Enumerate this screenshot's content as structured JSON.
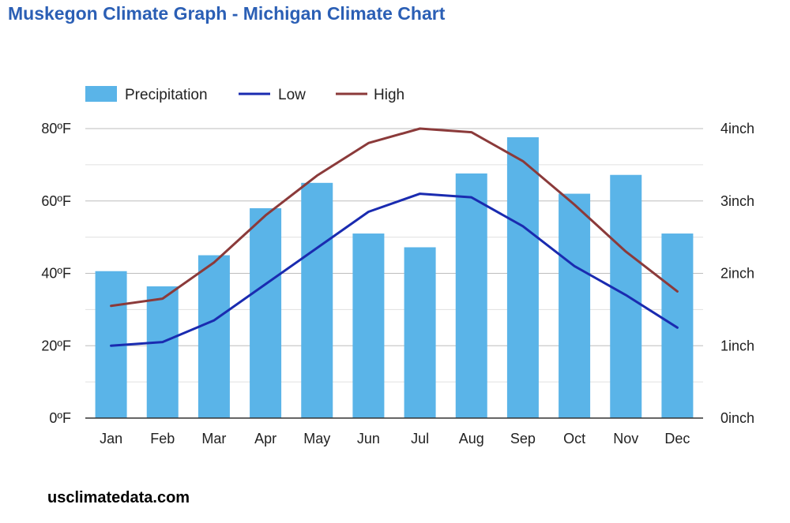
{
  "page": {
    "title": "Muskegon Climate Graph - Michigan Climate Chart",
    "source": "usclimatedata.com"
  },
  "chart_data": {
    "type": "bar",
    "title": "Muskegon Climate Graph - Michigan Climate Chart",
    "categories": [
      "Jan",
      "Feb",
      "Mar",
      "Apr",
      "May",
      "Jun",
      "Jul",
      "Aug",
      "Sep",
      "Oct",
      "Nov",
      "Dec"
    ],
    "series": [
      {
        "name": "Precipitation",
        "type": "bar",
        "axis": "right",
        "color": "#5ab4e8",
        "values": [
          2.03,
          1.82,
          2.25,
          2.9,
          3.25,
          2.55,
          2.36,
          3.38,
          3.88,
          3.1,
          3.36,
          2.55
        ]
      },
      {
        "name": "Low",
        "type": "line",
        "axis": "left",
        "color": "#1a2bb0",
        "values": [
          20,
          21,
          27,
          37,
          47,
          57,
          62,
          61,
          53,
          42,
          34,
          25
        ]
      },
      {
        "name": "High",
        "type": "line",
        "axis": "left",
        "color": "#8b3a3a",
        "values": [
          31,
          33,
          43,
          56,
          67,
          76,
          80,
          79,
          71,
          59,
          46,
          35
        ]
      }
    ],
    "y_left": {
      "min": 0,
      "max": 80,
      "ticks": [
        "0ºF",
        "20ºF",
        "40ºF",
        "60ºF",
        "80ºF"
      ]
    },
    "y_right": {
      "min": 0,
      "max": 4,
      "ticks": [
        "0inch",
        "1inch",
        "2inch",
        "3inch",
        "4inch"
      ]
    },
    "legend": {
      "position": "top-left",
      "items": [
        "Precipitation",
        "Low",
        "High"
      ]
    },
    "grid": true
  }
}
